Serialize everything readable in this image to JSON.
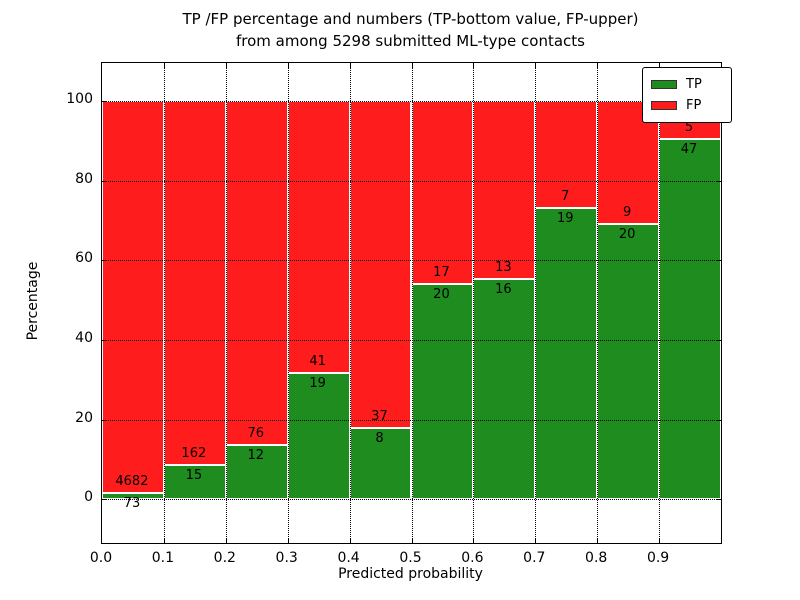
{
  "chart_data": {
    "type": "bar",
    "stacked": true,
    "title_line1": "TP /FP percentage and numbers (TP-bottom value, FP-upper)",
    "title_line2": "from among 5298 submitted ML-type contacts",
    "xlabel": "Predicted probability",
    "ylabel": "Percentage",
    "total_contacts": 5298,
    "bin_width": 0.1,
    "categories": [
      0.0,
      0.1,
      0.2,
      0.3,
      0.4,
      0.5,
      0.6,
      0.7,
      0.8,
      0.9
    ],
    "x_tick_labels": [
      "0.0",
      "0.1",
      "0.2",
      "0.3",
      "0.4",
      "0.5",
      "0.6",
      "0.7",
      "0.8",
      "0.9"
    ],
    "y_ticks": [
      0,
      20,
      40,
      60,
      80,
      100
    ],
    "y_tick_labels": [
      "0",
      "20",
      "40",
      "60",
      "80",
      "100"
    ],
    "xlim": [
      0.0,
      1.0
    ],
    "ylim": [
      -11.0,
      109.5
    ],
    "grid": true,
    "series": [
      {
        "name": "TP",
        "color": "#1e8c1e",
        "counts": [
          73,
          15,
          12,
          19,
          8,
          20,
          16,
          19,
          20,
          47
        ],
        "percent": [
          1.5,
          8.5,
          13.6,
          31.7,
          17.8,
          54.1,
          55.2,
          73.1,
          69.0,
          90.4
        ]
      },
      {
        "name": "FP",
        "color": "#ff1c1c",
        "counts": [
          4682,
          162,
          76,
          41,
          37,
          17,
          13,
          7,
          9,
          5
        ],
        "percent": [
          98.5,
          91.5,
          86.4,
          68.3,
          82.2,
          45.9,
          44.8,
          26.9,
          31.0,
          9.6
        ]
      }
    ],
    "legend": {
      "position": "upper right",
      "entries": [
        {
          "label": "TP",
          "color": "#1e8c1e"
        },
        {
          "label": "FP",
          "color": "#ff1c1c"
        }
      ]
    }
  }
}
